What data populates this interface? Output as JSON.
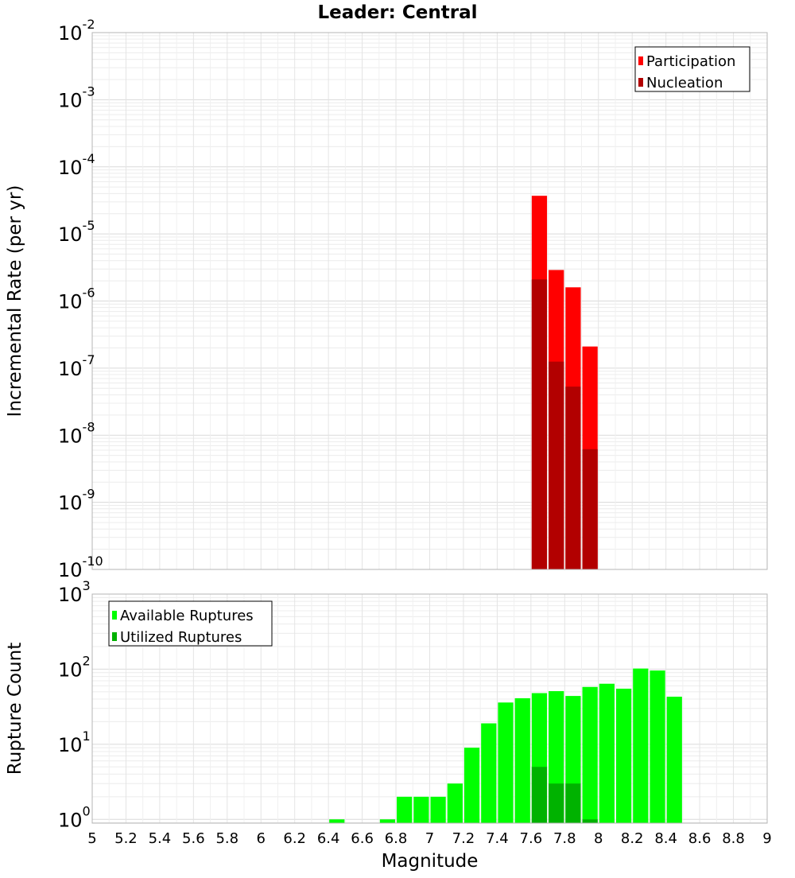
{
  "chart_data": [
    {
      "type": "bar",
      "title": "Leader: Central",
      "ylabel": "Incremental Rate (per yr)",
      "xlabel": "",
      "scale": "log",
      "xlim": [
        5,
        9
      ],
      "ylim_exp": [
        -10,
        -2
      ],
      "bar_width": 0.1,
      "legend_position": "top-right",
      "legend": [
        "Participation",
        "Nucleation"
      ],
      "colors": {
        "Participation": "#ff0000",
        "Nucleation": "#b20000"
      },
      "y_tick_exponents": [
        "-10",
        "-9",
        "-8",
        "-7",
        "-6",
        "-5",
        "-4",
        "-3",
        "-2"
      ],
      "x": [
        7.65,
        7.75,
        7.85,
        7.95
      ],
      "series": [
        {
          "name": "Participation",
          "values": [
            3.7e-05,
            2.9e-06,
            1.6e-06,
            2.1e-07
          ]
        },
        {
          "name": "Nucleation",
          "values": [
            2.1e-06,
            1.25e-07,
            5.3e-08,
            6.2e-09
          ]
        }
      ]
    },
    {
      "type": "bar",
      "title": "",
      "ylabel": "Rupture Count",
      "xlabel": "Magnitude",
      "scale": "log",
      "xlim": [
        5,
        9
      ],
      "ylim_exp": [
        -0.05,
        3
      ],
      "bar_width": 0.1,
      "legend_position": "top-left",
      "legend": [
        "Available Ruptures",
        "Utilized Ruptures"
      ],
      "colors": {
        "Available Ruptures": "#00ff00",
        "Utilized Ruptures": "#00b200"
      },
      "y_tick_exponents": [
        "0",
        "1",
        "2",
        "3"
      ],
      "x_tick_labels": [
        "5",
        "5.2",
        "5.4",
        "5.6",
        "5.8",
        "6",
        "6.2",
        "6.4",
        "6.6",
        "6.8",
        "7",
        "7.2",
        "7.4",
        "7.6",
        "7.8",
        "8",
        "8.2",
        "8.4",
        "8.6",
        "8.8",
        "9"
      ],
      "x": [
        6.45,
        6.75,
        6.85,
        6.95,
        7.05,
        7.15,
        7.25,
        7.35,
        7.45,
        7.55,
        7.65,
        7.75,
        7.85,
        7.95,
        8.05,
        8.15,
        8.25,
        8.35,
        8.45
      ],
      "series": [
        {
          "name": "Available Ruptures",
          "values": [
            1,
            1,
            2,
            2,
            2,
            3,
            9,
            19,
            36,
            41,
            48,
            51,
            44,
            58,
            64,
            55,
            102,
            96,
            43
          ]
        },
        {
          "name": "Utilized Ruptures",
          "values": [
            null,
            null,
            null,
            null,
            null,
            null,
            null,
            null,
            null,
            null,
            5,
            3,
            3,
            1,
            null,
            null,
            null,
            null,
            null
          ]
        }
      ]
    }
  ]
}
